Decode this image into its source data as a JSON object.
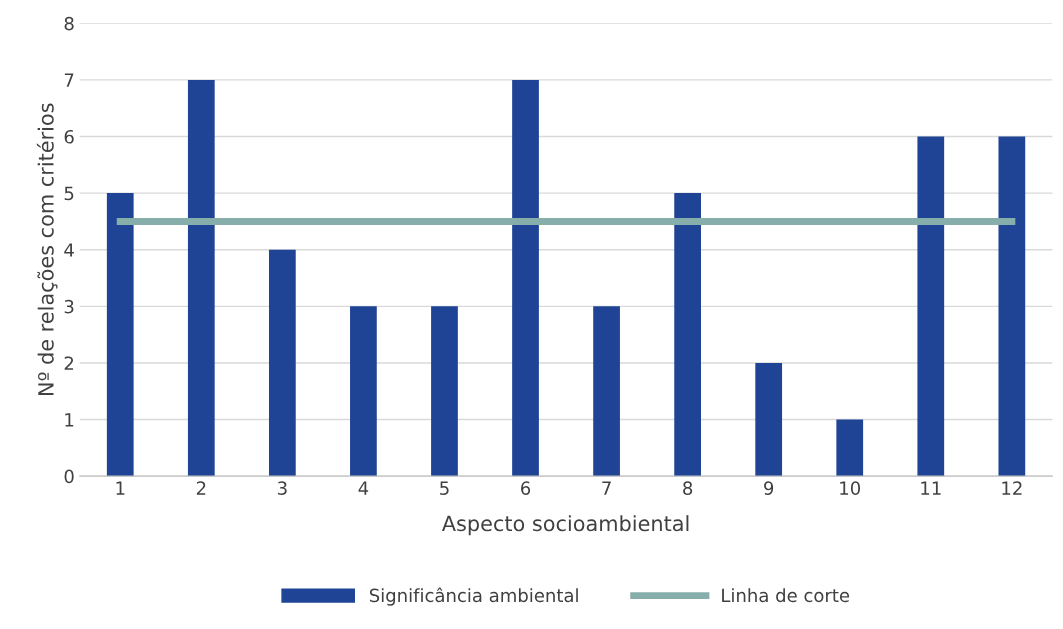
{
  "chart_data": {
    "type": "bar",
    "xlabel": "Aspecto socioambiental",
    "ylabel": "Nº de relações com critérios",
    "categories": [
      "1",
      "2",
      "3",
      "4",
      "5",
      "6",
      "7",
      "8",
      "9",
      "10",
      "11",
      "12"
    ],
    "series": [
      {
        "name": "Significância ambiental",
        "color": "#1f4496",
        "values": [
          5,
          7,
          4,
          3,
          3,
          7,
          3,
          5,
          2,
          1,
          6,
          6
        ]
      },
      {
        "name": "Linha de corte",
        "type": "line",
        "color": "#86aeaa",
        "values": [
          4.5,
          4.5,
          4.5,
          4.5,
          4.5,
          4.5,
          4.5,
          4.5,
          4.5,
          4.5,
          4.5,
          4.5
        ]
      }
    ],
    "ylim": [
      0,
      8
    ],
    "yticks": [
      0,
      1,
      2,
      3,
      4,
      5,
      6,
      7,
      8
    ],
    "grid": "y",
    "legend": "bottom",
    "marker": "none",
    "line_style": "solid"
  }
}
